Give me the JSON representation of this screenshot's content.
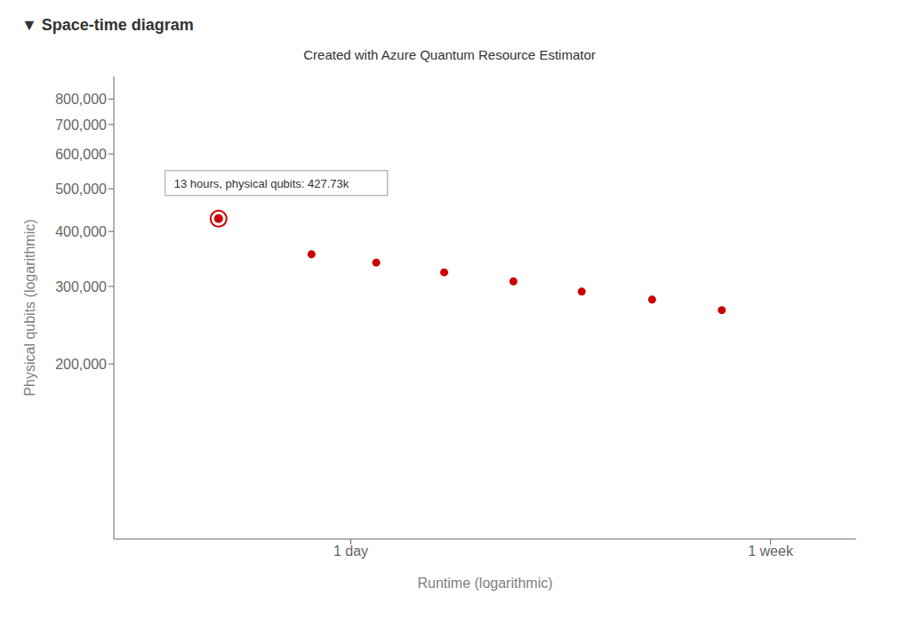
{
  "chart_data": {
    "type": "scatter",
    "subtitle": "▼ Space-time diagram",
    "title": "Created with Azure Quantum Resource Estimator",
    "xlabel": "Runtime (logarithmic)",
    "ylabel": "Physical qubits (logarithmic)",
    "x": [
      13,
      20,
      27,
      37,
      51,
      70,
      97,
      134
    ],
    "values": [
      427730,
      355000,
      340000,
      323000,
      308000,
      292000,
      280000,
      265000
    ],
    "color": "#cc0000",
    "log": true,
    "grid": false,
    "xlim": [
      8,
      250
    ],
    "xticks": [
      {
        "value": 24,
        "label": "1 day"
      },
      {
        "value": 168,
        "label": "1 week"
      }
    ],
    "ylim": [
      80000,
      900000
    ],
    "yticks": [
      {
        "value": 200000,
        "label": "200,000"
      },
      {
        "value": 300000,
        "label": "300,000"
      },
      {
        "value": 400000,
        "label": "400,000"
      },
      {
        "value": 500000,
        "label": "500,000"
      },
      {
        "value": 600000,
        "label": "600,000"
      },
      {
        "value": 700000,
        "label": "700,000"
      },
      {
        "value": 800000,
        "label": "800,000"
      }
    ],
    "annotations": [
      {
        "text": "13 hours, physical qubits: 427.73k",
        "x": 13,
        "y": 427730
      }
    ]
  }
}
